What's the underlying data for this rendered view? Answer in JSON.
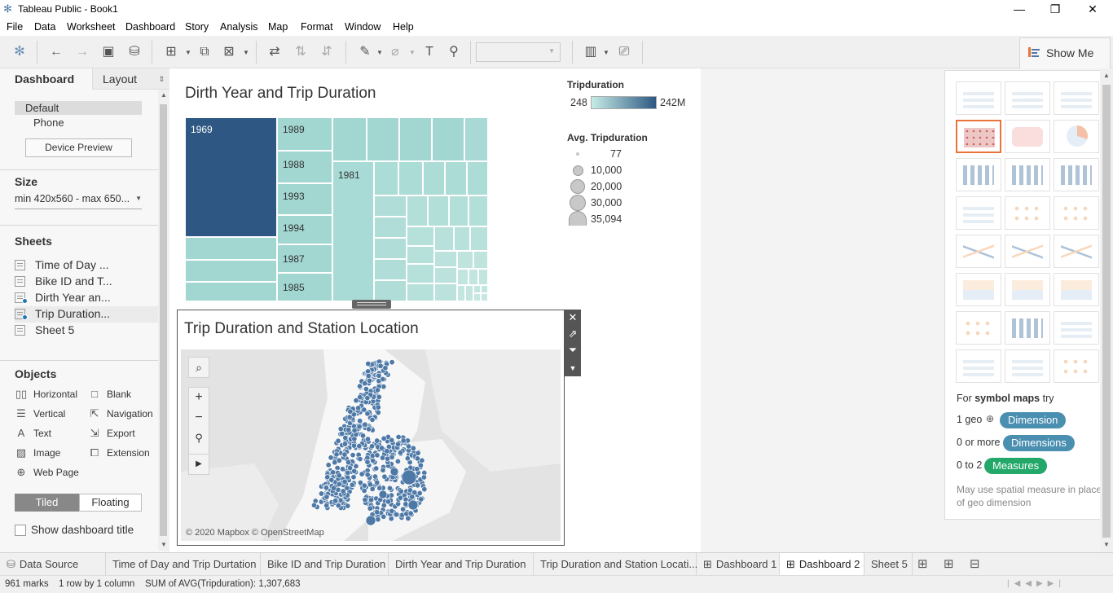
{
  "window": {
    "title": "Tableau Public - Book1"
  },
  "menu": [
    "File",
    "Data",
    "Worksheet",
    "Dashboard",
    "Story",
    "Analysis",
    "Map",
    "Format",
    "Window",
    "Help"
  ],
  "showme_tab": {
    "label": "Show Me"
  },
  "left_panel": {
    "tabs": [
      "Dashboard",
      "Layout"
    ],
    "device": {
      "default": "Default",
      "phone": "Phone",
      "preview_button": "Device Preview"
    },
    "size": {
      "heading": "Size",
      "value": "min 420x560 - max 650..."
    },
    "sheets": {
      "heading": "Sheets",
      "items": [
        "Time of Day ...",
        "Bike ID and T...",
        "Dirth Year an...",
        "Trip Duration...",
        "Sheet 5"
      ]
    },
    "objects": {
      "heading": "Objects",
      "items": [
        "Horizontal",
        "Blank",
        "Vertical",
        "Navigation",
        "Text",
        "Export",
        "Image",
        "Extension",
        "Web Page"
      ]
    },
    "layout_toggle": [
      "Tiled",
      "Floating"
    ],
    "show_title": "Show dashboard title"
  },
  "treemap": {
    "title": "Dirth Year and Trip Duration",
    "labels": [
      "1969",
      "1989",
      "1988",
      "1993",
      "1994",
      "1987",
      "1985",
      "1981"
    ]
  },
  "legend": {
    "color": {
      "title": "Tripduration",
      "min": "248",
      "max": "242M",
      "from": "#c6ece6",
      "to": "#2e5883"
    },
    "size": {
      "title": "Avg. Tripduration",
      "values": [
        "77",
        "10,000",
        "20,000",
        "30,000",
        "35,094"
      ]
    }
  },
  "map": {
    "title": "Trip Duration and Station Location",
    "attribution": "© 2020 Mapbox © OpenStreetMap",
    "point_color": "#4e79a7"
  },
  "showme": {
    "hint_prefix": "For ",
    "hint_bold": "symbol maps",
    "hint_suffix": " try",
    "req": [
      {
        "label": "1 geo",
        "pill": "Dimension"
      },
      {
        "label": "0 or more",
        "pill": "Dimensions"
      },
      {
        "label": "0 to 2",
        "pill": "Measures"
      }
    ],
    "note": "May use spatial measure in place of geo dimension",
    "colors": {
      "dimension": "#4a8fb0",
      "measure": "#23a86a",
      "selected": "#e8743b"
    }
  },
  "tabs": [
    "Data Source",
    "Time of Day and Trip Durtation",
    "Bike ID and Trip Duration",
    "Dirth Year and Trip Duration",
    "Trip Duration and Station Locati...",
    "Dashboard 1",
    "Dashboard 2",
    "Sheet 5"
  ],
  "status": {
    "marks": "961 marks",
    "rows": "1 row by 1 column",
    "sum": "SUM of AVG(Tripduration): 1,307,683"
  }
}
